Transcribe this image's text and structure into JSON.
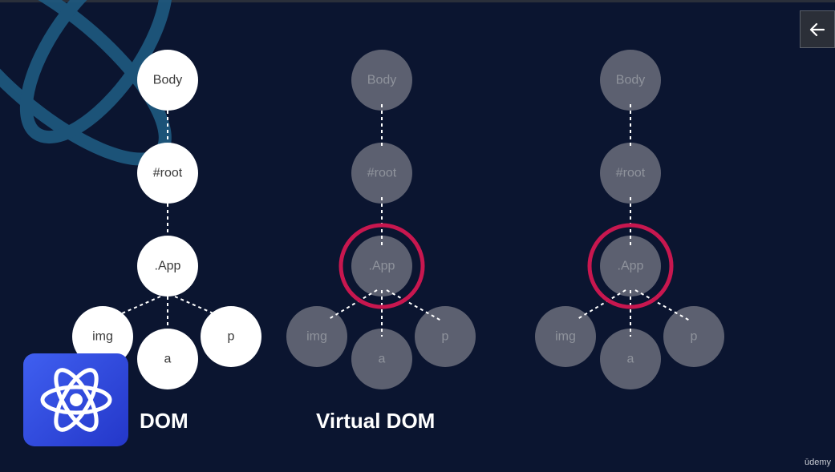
{
  "back_button": {
    "icon": "arrow-left-icon"
  },
  "diagrams": [
    {
      "caption": "DOM",
      "style": "white",
      "highlight": false,
      "nodes": {
        "body": "Body",
        "root": "#root",
        "app": ".App",
        "img": "img",
        "a": "a",
        "p": "p"
      }
    },
    {
      "caption": "Virtual DOM",
      "style": "grey",
      "highlight": true,
      "nodes": {
        "body": "Body",
        "root": "#root",
        "app": ".App",
        "img": "img",
        "a": "a",
        "p": "p"
      }
    },
    {
      "caption": "",
      "style": "grey",
      "highlight": true,
      "nodes": {
        "body": "Body",
        "root": "#root",
        "app": ".App",
        "img": "img",
        "a": "a",
        "p": "p"
      }
    }
  ],
  "colors": {
    "background": "#0b1530",
    "white_node": "#ffffff",
    "grey_node": "#5c6070",
    "highlight_ring": "#c8174f",
    "react_logo": "#2f48e0",
    "decorative_swirl": "#1e5a80"
  },
  "logo": {
    "icon": "react-atom-icon"
  },
  "watermark": "ūdemy"
}
